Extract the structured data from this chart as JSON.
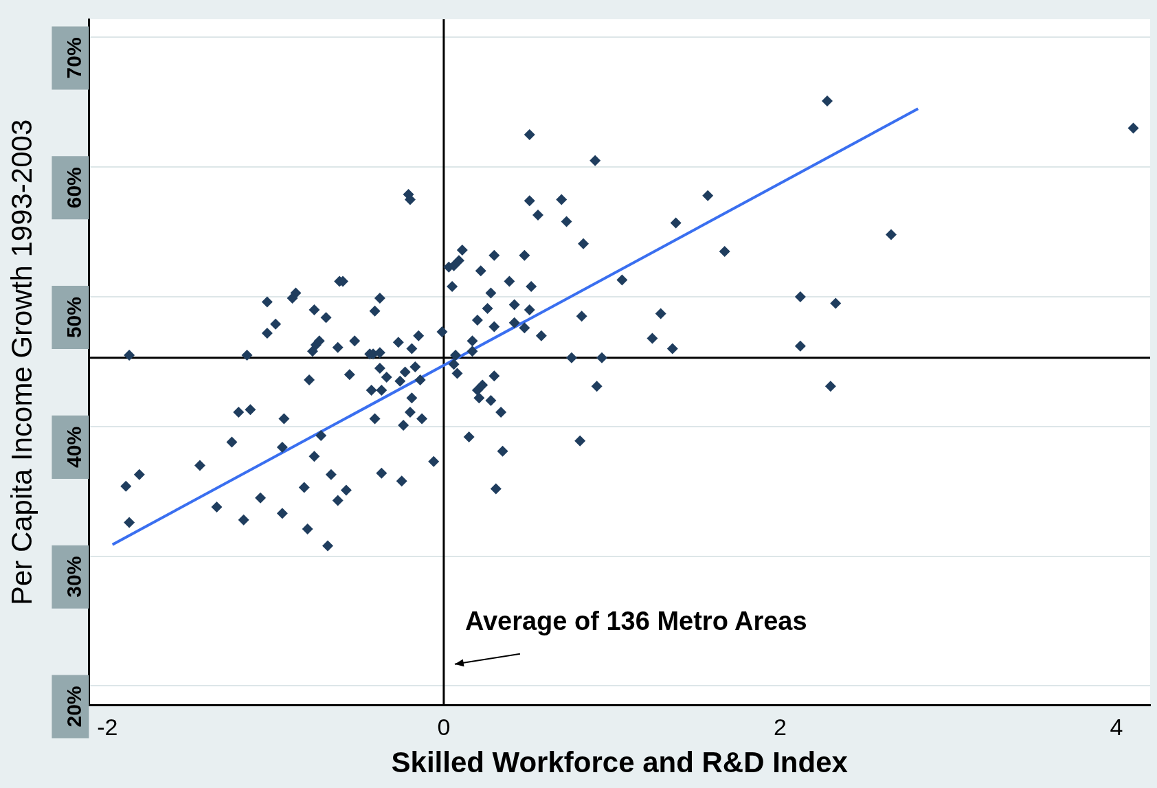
{
  "chart_data": {
    "type": "scatter",
    "xlabel": "Skilled Workforce and R&D Index",
    "ylabel": "Per Capita Income Growth 1993-2003",
    "xlim": [
      -2.11,
      4.2
    ],
    "xticks": [
      -2,
      0,
      2,
      4
    ],
    "ylim": [
      18.5,
      71.4
    ],
    "yticks": [
      {
        "value": 20,
        "label": "20%"
      },
      {
        "value": 30,
        "label": "30%"
      },
      {
        "value": 40,
        "label": "40%"
      },
      {
        "value": 50,
        "label": "50%"
      },
      {
        "value": 60,
        "label": "60%"
      },
      {
        "value": 70,
        "label": "70%"
      }
    ],
    "grid": "y",
    "legend": false,
    "ref_lines": [
      {
        "axis": "x",
        "value": 0,
        "color": "#000000"
      },
      {
        "axis": "y",
        "value": 45.3,
        "color": "#000000"
      }
    ],
    "annotations": [
      "Average of 136 Metro Areas"
    ],
    "series": [
      {
        "type": "scatter",
        "marker": "diamond",
        "color": "#1f3d5e",
        "x": [
          -1.87,
          -1.89,
          -1.81,
          -1.87,
          -1.45,
          -1.35,
          -1.26,
          -1.22,
          -1.15,
          -1.19,
          -1.17,
          -1.09,
          -1.05,
          -1.05,
          -1.0,
          -0.96,
          -0.96,
          -0.95,
          -0.9,
          -0.88,
          -0.83,
          -0.81,
          -0.8,
          -0.78,
          -0.77,
          -0.76,
          -0.74,
          -0.77,
          -0.73,
          -0.7,
          -0.69,
          -0.67,
          -0.63,
          -0.63,
          -0.62,
          -0.6,
          -0.58,
          -0.56,
          -0.53,
          -0.41,
          -0.38,
          -0.42,
          -0.38,
          -0.43,
          -0.38,
          -0.41,
          -0.37,
          -0.37,
          -0.34,
          -0.27,
          -0.25,
          -0.26,
          -0.24,
          -0.21,
          -0.2,
          -0.23,
          -0.2,
          -0.19,
          -0.19,
          -0.17,
          -0.15,
          -0.14,
          -0.13,
          -0.06,
          -0.01,
          0.03,
          0.06,
          0.09,
          0.11,
          0.05,
          0.07,
          0.06,
          0.08,
          0.15,
          0.17,
          0.17,
          0.2,
          0.22,
          0.2,
          0.23,
          0.21,
          0.26,
          0.28,
          0.28,
          0.3,
          0.3,
          0.3,
          0.31,
          0.34,
          0.35,
          0.39,
          0.42,
          0.42,
          0.48,
          0.48,
          0.51,
          0.51,
          0.51,
          0.52,
          0.56,
          0.58,
          0.7,
          0.73,
          0.76,
          0.81,
          0.82,
          0.83,
          0.9,
          0.91,
          0.94,
          1.06,
          1.24,
          1.29,
          1.36,
          1.38,
          1.57,
          1.67,
          2.12,
          2.12,
          2.28,
          2.3,
          2.33,
          2.66,
          4.1,
          -0.44
        ],
        "values": [
          45.5,
          35.4,
          36.3,
          32.6,
          37.0,
          33.8,
          38.8,
          41.1,
          41.3,
          32.8,
          45.5,
          34.5,
          49.6,
          47.2,
          47.9,
          33.3,
          38.4,
          40.6,
          49.9,
          50.3,
          35.3,
          32.1,
          43.6,
          45.8,
          49.0,
          46.3,
          46.6,
          37.7,
          39.3,
          48.4,
          30.8,
          36.3,
          46.1,
          34.3,
          51.2,
          51.2,
          35.1,
          44.0,
          46.6,
          48.9,
          49.9,
          45.6,
          45.7,
          42.8,
          44.5,
          40.6,
          36.4,
          42.8,
          43.8,
          46.5,
          35.8,
          43.5,
          40.1,
          57.9,
          57.5,
          44.2,
          41.1,
          46.0,
          42.2,
          44.6,
          47.0,
          43.6,
          40.6,
          37.3,
          47.3,
          52.3,
          52.4,
          52.8,
          53.6,
          50.8,
          45.5,
          44.8,
          44.1,
          39.2,
          46.6,
          45.8,
          48.2,
          52.0,
          42.8,
          43.2,
          42.2,
          49.1,
          50.3,
          42.0,
          53.2,
          47.7,
          43.9,
          35.2,
          41.1,
          38.1,
          51.2,
          49.4,
          48.0,
          53.2,
          47.6,
          62.5,
          57.4,
          49.0,
          50.8,
          56.3,
          47.0,
          57.5,
          55.8,
          45.3,
          38.9,
          48.5,
          54.1,
          60.5,
          43.1,
          45.3,
          51.3,
          46.8,
          48.7,
          46.0,
          55.7,
          57.8,
          53.5,
          50.0,
          46.2,
          65.1,
          43.1,
          49.5,
          54.8,
          63.0,
          45.6
        ]
      },
      {
        "type": "line",
        "marker": "none",
        "color": "#3a6ff0",
        "x": [
          -1.97,
          2.82
        ],
        "values": [
          30.9,
          64.5
        ]
      }
    ]
  }
}
